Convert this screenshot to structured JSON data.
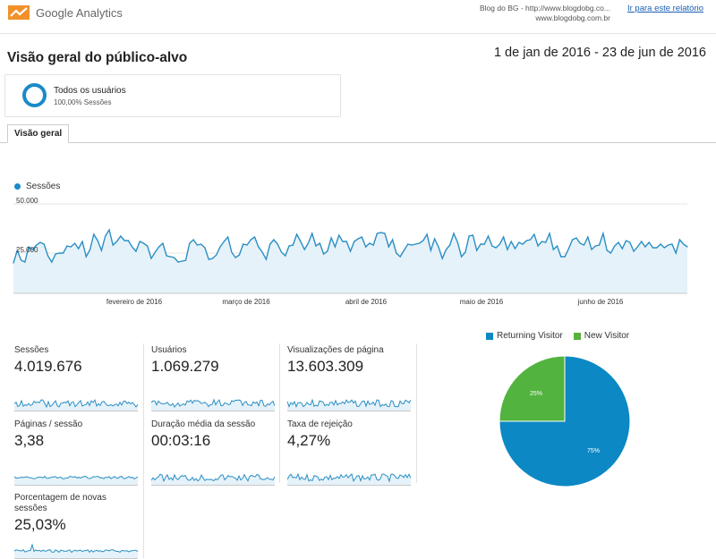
{
  "app": {
    "brand": "Google Analytics",
    "account_line1": "Blog do BG - http://www.blogdobg.co...",
    "account_line2": "www.blogdobg.com.br",
    "report_link": "Ir para este relatório"
  },
  "page": {
    "title": "Visão geral do público-alvo",
    "date_range": "1 de jan de 2016 - 23 de jun de 2016"
  },
  "segment": {
    "name": "Todos os usuários",
    "sub": "100,00% Sessões"
  },
  "tabs": [
    {
      "label": "Visão geral"
    }
  ],
  "colors": {
    "accent": "#1a8ac9",
    "green": "#57b13b",
    "line": "#2a8fc4",
    "fill": "#e6f2f9"
  },
  "chart_data": [
    {
      "type": "area",
      "series": [
        {
          "name": "Sessões",
          "values": [
            17000,
            24000,
            18500,
            17500,
            26000,
            24500,
            27000,
            28500,
            27500,
            21000,
            17500,
            22000,
            22500,
            22500,
            26500,
            26000,
            28000,
            25000,
            29000,
            20500,
            24500,
            33000,
            29500,
            24000,
            32000,
            35500,
            27000,
            29000,
            32000,
            29500,
            29500,
            26000,
            23500,
            29000,
            28000,
            26500,
            19500,
            23000,
            26000,
            28000,
            21000,
            20500,
            20000,
            17500,
            18000,
            18500,
            28000,
            30000,
            27000,
            27500,
            25500,
            19000,
            19500,
            21500,
            26000,
            29000,
            31500,
            23000,
            20000,
            21500,
            27500,
            27000,
            30000,
            31500,
            26000,
            23000,
            19000,
            27500,
            30000,
            27500,
            23000,
            21000,
            26500,
            27000,
            33000,
            29000,
            24500,
            28000,
            33500,
            26500,
            28000,
            22000,
            23500,
            31000,
            26000,
            32500,
            29000,
            29000,
            23500,
            29000,
            30500,
            31500,
            26000,
            28000,
            27000,
            33500,
            34000,
            33500,
            26000,
            30000,
            22500,
            20500,
            24000,
            27500,
            27000,
            27500,
            28000,
            29500,
            33000,
            24000,
            30500,
            26000,
            19500,
            24500,
            27000,
            33500,
            28500,
            20500,
            23000,
            32000,
            32500,
            24000,
            27500,
            27500,
            32000,
            26500,
            25500,
            27500,
            31500,
            24500,
            29000,
            25000,
            28500,
            27500,
            29500,
            30000,
            33000,
            26500,
            29000,
            28500,
            33500,
            24500,
            26500,
            20500,
            20500,
            25000,
            30000,
            31000,
            28000,
            27000,
            31500,
            24500,
            26500,
            27000,
            33500,
            24000,
            22500,
            26500,
            28500,
            25000,
            29500,
            28500,
            23500,
            26000,
            29000,
            26000,
            28500,
            25500,
            25500,
            27500,
            25500,
            27000,
            27500,
            22500,
            30000,
            27500,
            26000
          ]
        }
      ],
      "x_tick_labels": [
        "fevereiro de 2016",
        "março de 2016",
        "abril de 2016",
        "maio de 2016",
        "junho de 2016"
      ],
      "y_tick_labels": [
        "50.000",
        "25.000"
      ],
      "ylim": [
        0,
        50000
      ]
    },
    {
      "type": "pie",
      "series": [
        {
          "name": "Returning Visitor",
          "value": 75,
          "label": "75%",
          "color": "#0c88c4"
        },
        {
          "name": "New Visitor",
          "value": 25,
          "label": "25%",
          "color": "#52b33f"
        }
      ]
    }
  ],
  "metrics": [
    {
      "label": "Sessões",
      "value": "4.019.676"
    },
    {
      "label": "Usuários",
      "value": "1.069.279"
    },
    {
      "label": "Visualizações de página",
      "value": "13.603.309"
    },
    {
      "label": "Páginas / sessão",
      "value": "3,38"
    },
    {
      "label": "Duração média da sessão",
      "value": "00:03:16"
    },
    {
      "label": "Taxa de rejeição",
      "value": "4,27%"
    },
    {
      "label": "Porcentagem de novas sessões",
      "value": "25,03%"
    }
  ]
}
